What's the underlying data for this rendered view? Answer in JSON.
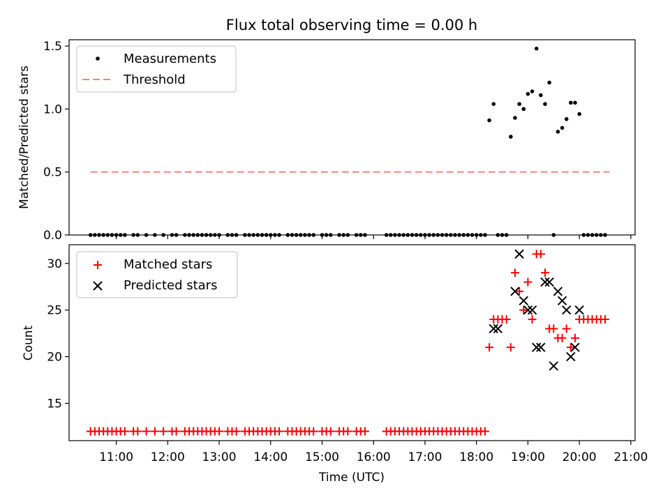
{
  "chart_data": [
    {
      "type": "scatter",
      "title": "Flux total observing time = 0.00 h",
      "ylabel": "Matched/Predicted stars",
      "xlabel": "",
      "xlim": [
        "10:05",
        "21:05"
      ],
      "ylim": [
        0,
        1.55
      ],
      "yticks": [
        "0.0",
        "0.5",
        "1.0",
        "1.5"
      ],
      "legend": "top-left",
      "legend_entries": [
        "Measurements",
        "Threshold"
      ],
      "threshold": {
        "name": "Threshold",
        "y": 0.5,
        "x_start": "10:30",
        "x_end": "20:35",
        "color": "#ff7f7f",
        "style": "dashed"
      },
      "series": [
        {
          "name": "Measurements",
          "color": "#000000",
          "marker": "dot",
          "x": [
            "10:30",
            "10:35",
            "10:40",
            "10:45",
            "10:50",
            "10:55",
            "11:00",
            "11:05",
            "11:10",
            "11:20",
            "11:25",
            "11:35",
            "11:45",
            "11:55",
            "12:05",
            "12:10",
            "12:20",
            "12:25",
            "12:30",
            "12:35",
            "12:40",
            "12:45",
            "12:50",
            "12:55",
            "13:00",
            "13:10",
            "13:15",
            "13:20",
            "13:30",
            "13:35",
            "13:40",
            "13:45",
            "13:50",
            "13:55",
            "14:00",
            "14:05",
            "14:10",
            "14:20",
            "14:25",
            "14:30",
            "14:35",
            "14:40",
            "14:45",
            "14:50",
            "15:00",
            "15:05",
            "15:10",
            "15:20",
            "15:25",
            "15:30",
            "15:40",
            "15:45",
            "15:50",
            "16:15",
            "16:20",
            "16:25",
            "16:30",
            "16:35",
            "16:40",
            "16:45",
            "16:50",
            "16:55",
            "17:00",
            "17:05",
            "17:10",
            "17:15",
            "17:20",
            "17:25",
            "17:30",
            "17:35",
            "17:40",
            "17:45",
            "17:50",
            "17:55",
            "18:00",
            "18:05",
            "18:10",
            "18:15",
            "18:20",
            "18:25",
            "18:30",
            "18:35",
            "18:40",
            "18:45",
            "18:50",
            "18:55",
            "19:00",
            "19:05",
            "19:10",
            "19:15",
            "19:20",
            "19:25",
            "19:30",
            "19:35",
            "19:40",
            "19:45",
            "19:50",
            "19:55",
            "20:00",
            "20:05",
            "20:10",
            "20:15",
            "20:20",
            "20:25",
            "20:30"
          ],
          "y": [
            0,
            0,
            0,
            0,
            0,
            0,
            0,
            0,
            0,
            0,
            0,
            0,
            0,
            0,
            0,
            0,
            0,
            0,
            0,
            0,
            0,
            0,
            0,
            0,
            0,
            0,
            0,
            0,
            0,
            0,
            0,
            0,
            0,
            0,
            0,
            0,
            0,
            0,
            0,
            0,
            0,
            0,
            0,
            0,
            0,
            0,
            0,
            0,
            0,
            0,
            0,
            0,
            0,
            0,
            0,
            0,
            0,
            0,
            0,
            0,
            0,
            0,
            0,
            0,
            0,
            0,
            0,
            0,
            0,
            0,
            0,
            0,
            0,
            0,
            0,
            0,
            0,
            0.91,
            1.04,
            0,
            0,
            0,
            0.78,
            0.93,
            1.04,
            1.0,
            1.12,
            1.14,
            1.48,
            1.11,
            1.04,
            1.21,
            0,
            0.82,
            0.85,
            0.92,
            1.05,
            1.05,
            0.96,
            0,
            0,
            0,
            0,
            0,
            0
          ]
        }
      ]
    },
    {
      "type": "scatter",
      "title": "",
      "ylabel": "Count",
      "xlabel": "Time (UTC)",
      "xlim": [
        "10:05",
        "21:05"
      ],
      "ylim": [
        11,
        32
      ],
      "yticks": [
        "15",
        "20",
        "25",
        "30"
      ],
      "xticks": [
        "11:00",
        "12:00",
        "13:00",
        "14:00",
        "15:00",
        "16:00",
        "17:00",
        "18:00",
        "19:00",
        "20:00",
        "21:00"
      ],
      "legend": "top-left",
      "legend_entries": [
        "Matched stars",
        "Predicted stars"
      ],
      "series": [
        {
          "name": "Matched stars",
          "color": "#ff0000",
          "marker": "plus",
          "x": [
            "10:30",
            "10:35",
            "10:40",
            "10:45",
            "10:50",
            "10:55",
            "11:00",
            "11:05",
            "11:10",
            "11:20",
            "11:25",
            "11:35",
            "11:45",
            "11:55",
            "12:05",
            "12:10",
            "12:20",
            "12:25",
            "12:30",
            "12:35",
            "12:40",
            "12:45",
            "12:50",
            "12:55",
            "13:00",
            "13:10",
            "13:15",
            "13:20",
            "13:30",
            "13:35",
            "13:40",
            "13:45",
            "13:50",
            "13:55",
            "14:00",
            "14:05",
            "14:10",
            "14:20",
            "14:25",
            "14:30",
            "14:35",
            "14:40",
            "14:45",
            "14:50",
            "15:00",
            "15:05",
            "15:10",
            "15:20",
            "15:25",
            "15:30",
            "15:40",
            "15:45",
            "15:50",
            "16:15",
            "16:20",
            "16:25",
            "16:30",
            "16:35",
            "16:40",
            "16:45",
            "16:50",
            "16:55",
            "17:00",
            "17:05",
            "17:10",
            "17:15",
            "17:20",
            "17:25",
            "17:30",
            "17:35",
            "17:40",
            "17:45",
            "17:50",
            "17:55",
            "18:00",
            "18:05",
            "18:10",
            "18:15",
            "18:20",
            "18:25",
            "18:30",
            "18:35",
            "18:40",
            "18:45",
            "18:50",
            "18:55",
            "19:00",
            "19:05",
            "19:10",
            "19:15",
            "19:20",
            "19:25",
            "19:30",
            "19:35",
            "19:40",
            "19:45",
            "19:50",
            "19:55",
            "20:00",
            "20:05",
            "20:10",
            "20:15",
            "20:20",
            "20:25",
            "20:30"
          ],
          "y": [
            12,
            12,
            12,
            12,
            12,
            12,
            12,
            12,
            12,
            12,
            12,
            12,
            12,
            12,
            12,
            12,
            12,
            12,
            12,
            12,
            12,
            12,
            12,
            12,
            12,
            12,
            12,
            12,
            12,
            12,
            12,
            12,
            12,
            12,
            12,
            12,
            12,
            12,
            12,
            12,
            12,
            12,
            12,
            12,
            12,
            12,
            12,
            12,
            12,
            12,
            12,
            12,
            12,
            12,
            12,
            12,
            12,
            12,
            12,
            12,
            12,
            12,
            12,
            12,
            12,
            12,
            12,
            12,
            12,
            12,
            12,
            12,
            12,
            12,
            12,
            12,
            12,
            21,
            24,
            24,
            24,
            24,
            21,
            29,
            27,
            25,
            28,
            24,
            31,
            31,
            29,
            23,
            23,
            22,
            22,
            23,
            21,
            22,
            24,
            24,
            24,
            24,
            24,
            24,
            24
          ]
        },
        {
          "name": "Predicted stars",
          "color": "#000000",
          "marker": "x",
          "x": [
            "18:20",
            "18:25",
            "18:45",
            "18:50",
            "18:55",
            "19:00",
            "19:05",
            "19:10",
            "19:15",
            "19:20",
            "19:25",
            "19:30",
            "19:35",
            "19:40",
            "19:45",
            "19:50",
            "19:55",
            "20:00"
          ],
          "y": [
            23,
            23,
            27,
            31,
            26,
            25,
            25,
            21,
            21,
            28,
            28,
            19,
            27,
            26,
            25,
            20,
            21,
            25
          ]
        }
      ]
    }
  ]
}
